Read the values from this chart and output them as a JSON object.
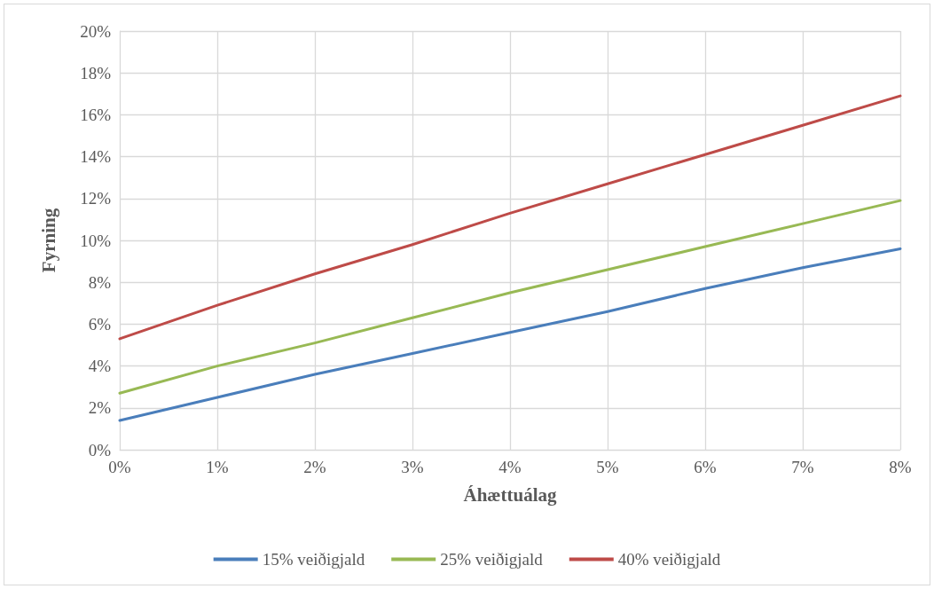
{
  "chart_data": {
    "type": "line",
    "xlabel": "Áhættuálag",
    "ylabel": "Fyrning",
    "x": [
      0,
      1,
      2,
      3,
      4,
      5,
      6,
      7,
      8
    ],
    "series": [
      {
        "name": "15% veiðigjald",
        "color": "#4a7ebb",
        "values": [
          1.4,
          2.5,
          3.6,
          4.6,
          5.6,
          6.6,
          7.7,
          8.7,
          9.6
        ]
      },
      {
        "name": "25% veiðigjald",
        "color": "#98b954",
        "values": [
          2.7,
          4.0,
          5.1,
          6.3,
          7.5,
          8.6,
          9.7,
          10.8,
          11.9
        ]
      },
      {
        "name": "40% veiðigjald",
        "color": "#be4b48",
        "values": [
          5.3,
          6.9,
          8.4,
          9.8,
          11.3,
          12.7,
          14.1,
          15.5,
          16.9
        ]
      }
    ],
    "xlim": [
      0,
      8
    ],
    "xticks": [
      {
        "value": 0,
        "label": "0%"
      },
      {
        "value": 1,
        "label": "1%"
      },
      {
        "value": 2,
        "label": "2%"
      },
      {
        "value": 3,
        "label": "3%"
      },
      {
        "value": 4,
        "label": "4%"
      },
      {
        "value": 5,
        "label": "5%"
      },
      {
        "value": 6,
        "label": "6%"
      },
      {
        "value": 7,
        "label": "7%"
      },
      {
        "value": 8,
        "label": "8%"
      }
    ],
    "ylim": [
      0,
      20
    ],
    "yticks": [
      {
        "value": 0,
        "label": "0%"
      },
      {
        "value": 2,
        "label": "2%"
      },
      {
        "value": 4,
        "label": "4%"
      },
      {
        "value": 6,
        "label": "6%"
      },
      {
        "value": 8,
        "label": "8%"
      },
      {
        "value": 10,
        "label": "10%"
      },
      {
        "value": 12,
        "label": "12%"
      },
      {
        "value": 14,
        "label": "14%"
      },
      {
        "value": 16,
        "label": "16%"
      },
      {
        "value": 18,
        "label": "18%"
      },
      {
        "value": 20,
        "label": "20%"
      }
    ],
    "grid": true,
    "legend": "bottom",
    "marker": "none",
    "line_style": "solid"
  }
}
